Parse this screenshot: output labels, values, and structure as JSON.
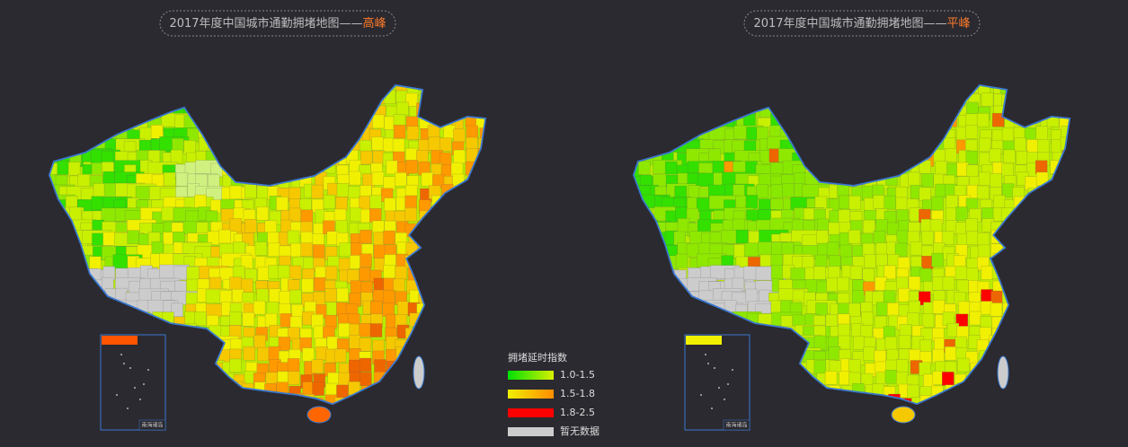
{
  "maps": [
    {
      "title": "2017年度中国城市通勤拥堵地图——",
      "highlight": "高峰",
      "inset_label": "南海诸岛"
    },
    {
      "title": "2017年度中国城市通勤拥堵地图——",
      "highlight": "平峰",
      "inset_label": "南海诸岛"
    }
  ],
  "legend": {
    "title": "拥堵延时指数",
    "items": [
      {
        "label": "1.0-1.5",
        "colors": [
          "#00e000",
          "#d8f000"
        ]
      },
      {
        "label": "1.5-1.8",
        "colors": [
          "#f0f000",
          "#ff8c00"
        ]
      },
      {
        "label": "1.8-2.5",
        "colors": [
          "#ff0000",
          "#ff0000"
        ]
      },
      {
        "label": "暂无数据",
        "colors": [
          "#cccccc",
          "#cccccc"
        ]
      }
    ]
  }
}
